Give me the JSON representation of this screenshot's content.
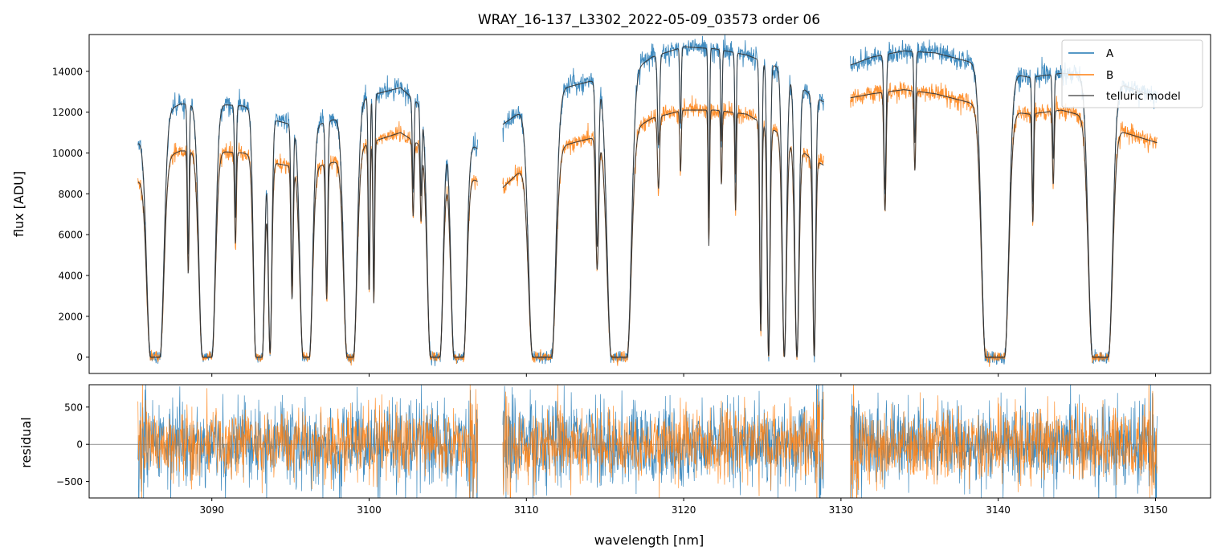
{
  "chart_data": [
    {
      "type": "line",
      "title": "WRAY_16-137_L3302_2022-05-09_03573  order 06",
      "xlabel": "",
      "ylabel": "flux [ADU]",
      "xlim": [
        3082.2,
        3153.5
      ],
      "ylim": [
        -800,
        15800
      ],
      "yticks": [
        0,
        2000,
        4000,
        6000,
        8000,
        10000,
        12000,
        14000
      ],
      "xticks": [
        3090,
        3100,
        3110,
        3120,
        3130,
        3140,
        3150
      ],
      "legend": {
        "placement": "top-right",
        "entries": [
          "A",
          "B",
          "telluric model"
        ]
      },
      "segments": [
        [
          3085.3,
          3106.9
        ],
        [
          3108.5,
          3128.9
        ],
        [
          3130.6,
          3150.1
        ]
      ],
      "continuum_A": [
        [
          3085.3,
          10500
        ],
        [
          3086.5,
          11800
        ],
        [
          3088.0,
          12400
        ],
        [
          3090.0,
          12400
        ],
        [
          3092.0,
          12300
        ],
        [
          3094.0,
          11600
        ],
        [
          3096.0,
          11200
        ],
        [
          3098.0,
          11700
        ],
        [
          3100.0,
          12800
        ],
        [
          3102.0,
          13200
        ],
        [
          3104.0,
          11800
        ],
        [
          3106.0,
          10700
        ],
        [
          3106.9,
          10200
        ],
        [
          3108.5,
          11400
        ],
        [
          3110.0,
          12200
        ],
        [
          3112.0,
          13100
        ],
        [
          3114.0,
          13500
        ],
        [
          3116.0,
          13600
        ],
        [
          3118.0,
          14700
        ],
        [
          3120.0,
          15200
        ],
        [
          3122.0,
          15100
        ],
        [
          3124.0,
          14800
        ],
        [
          3126.0,
          14200
        ],
        [
          3128.0,
          12900
        ],
        [
          3128.9,
          12500
        ],
        [
          3130.6,
          14300
        ],
        [
          3132.0,
          14700
        ],
        [
          3134.0,
          15000
        ],
        [
          3136.0,
          14900
        ],
        [
          3138.0,
          14500
        ],
        [
          3140.0,
          14000
        ],
        [
          3142.0,
          13700
        ],
        [
          3144.0,
          13900
        ],
        [
          3146.0,
          13800
        ],
        [
          3148.0,
          13300
        ],
        [
          3150.1,
          12700
        ]
      ],
      "continuum_B": [
        [
          3085.3,
          8600
        ],
        [
          3086.5,
          9600
        ],
        [
          3088.0,
          10100
        ],
        [
          3090.0,
          10100
        ],
        [
          3092.0,
          10000
        ],
        [
          3094.0,
          9500
        ],
        [
          3096.0,
          9200
        ],
        [
          3098.0,
          9600
        ],
        [
          3100.0,
          10500
        ],
        [
          3102.0,
          11000
        ],
        [
          3104.0,
          10000
        ],
        [
          3106.0,
          9000
        ],
        [
          3106.9,
          8600
        ],
        [
          3108.5,
          8300
        ],
        [
          3110.0,
          9400
        ],
        [
          3112.0,
          10300
        ],
        [
          3114.0,
          10700
        ],
        [
          3116.0,
          10800
        ],
        [
          3118.0,
          11700
        ],
        [
          3120.0,
          12100
        ],
        [
          3122.0,
          12100
        ],
        [
          3124.0,
          11900
        ],
        [
          3126.0,
          11000
        ],
        [
          3128.0,
          9800
        ],
        [
          3128.9,
          9400
        ],
        [
          3130.6,
          12700
        ],
        [
          3132.0,
          12900
        ],
        [
          3134.0,
          13100
        ],
        [
          3136.0,
          12900
        ],
        [
          3138.0,
          12500
        ],
        [
          3140.0,
          12100
        ],
        [
          3142.0,
          11900
        ],
        [
          3144.0,
          12100
        ],
        [
          3146.0,
          11700
        ],
        [
          3148.0,
          11000
        ],
        [
          3150.1,
          10500
        ]
      ],
      "absorption_lines": [
        {
          "center": 3086.4,
          "width": 0.55,
          "depth": 1.0,
          "flat": 0.3
        },
        {
          "center": 3088.5,
          "width": 0.12,
          "depth": 0.6
        },
        {
          "center": 3089.7,
          "width": 0.5,
          "depth": 1.0,
          "flat": 0.3
        },
        {
          "center": 3091.5,
          "width": 0.12,
          "depth": 0.45
        },
        {
          "center": 3093.0,
          "width": 0.35,
          "depth": 1.0,
          "flat": 0.2
        },
        {
          "center": 3093.7,
          "width": 0.25,
          "depth": 0.98
        },
        {
          "center": 3095.1,
          "width": 0.15,
          "depth": 0.7
        },
        {
          "center": 3096.0,
          "width": 0.45,
          "depth": 1.0,
          "flat": 0.2
        },
        {
          "center": 3097.3,
          "width": 0.15,
          "depth": 0.7
        },
        {
          "center": 3098.8,
          "width": 0.5,
          "depth": 1.0,
          "flat": 0.2
        },
        {
          "center": 3100.0,
          "width": 0.12,
          "depth": 0.7
        },
        {
          "center": 3100.3,
          "width": 0.12,
          "depth": 0.75
        },
        {
          "center": 3102.8,
          "width": 0.12,
          "depth": 0.35
        },
        {
          "center": 3103.3,
          "width": 0.12,
          "depth": 0.35
        },
        {
          "center": 3104.2,
          "width": 0.45,
          "depth": 1.0,
          "flat": 0.3
        },
        {
          "center": 3105.7,
          "width": 0.45,
          "depth": 1.0,
          "flat": 0.3
        },
        {
          "center": 3111.0,
          "width": 0.6,
          "depth": 1.0,
          "flat": 0.6
        },
        {
          "center": 3114.5,
          "width": 0.2,
          "depth": 0.6
        },
        {
          "center": 3115.9,
          "width": 0.6,
          "depth": 1.0,
          "flat": 0.5
        },
        {
          "center": 3118.4,
          "width": 0.15,
          "depth": 0.3
        },
        {
          "center": 3119.8,
          "width": 0.1,
          "depth": 0.25
        },
        {
          "center": 3121.6,
          "width": 0.1,
          "depth": 0.55
        },
        {
          "center": 3122.4,
          "width": 0.1,
          "depth": 0.3
        },
        {
          "center": 3123.3,
          "width": 0.1,
          "depth": 0.4
        },
        {
          "center": 3124.9,
          "width": 0.15,
          "depth": 0.9
        },
        {
          "center": 3125.4,
          "width": 0.2,
          "depth": 1.0
        },
        {
          "center": 3126.4,
          "width": 0.3,
          "depth": 1.0
        },
        {
          "center": 3127.2,
          "width": 0.3,
          "depth": 1.0
        },
        {
          "center": 3128.3,
          "width": 0.2,
          "depth": 1.0
        },
        {
          "center": 3132.8,
          "width": 0.15,
          "depth": 0.45
        },
        {
          "center": 3134.7,
          "width": 0.12,
          "depth": 0.3
        },
        {
          "center": 3139.8,
          "width": 0.6,
          "depth": 1.0,
          "flat": 0.6
        },
        {
          "center": 3142.2,
          "width": 0.12,
          "depth": 0.45
        },
        {
          "center": 3143.5,
          "width": 0.12,
          "depth": 0.3
        },
        {
          "center": 3146.5,
          "width": 0.6,
          "depth": 1.0,
          "flat": 0.5
        }
      ]
    },
    {
      "type": "line",
      "title": "",
      "xlabel": "wavelength [nm]",
      "ylabel": "residual",
      "xlim": [
        3082.2,
        3153.5
      ],
      "ylim": [
        -720,
        800
      ],
      "yticks": [
        -500,
        0,
        500
      ],
      "xticks": [
        3090,
        3100,
        3110,
        3120,
        3130,
        3140,
        3150
      ],
      "segments": [
        [
          3085.3,
          3106.9
        ],
        [
          3108.5,
          3128.9
        ],
        [
          3130.6,
          3150.1
        ]
      ],
      "baseline": 0,
      "noise_amplitude": {
        "A": 280,
        "B": 230
      }
    }
  ],
  "colors": {
    "A": "#1f77b4",
    "B": "#ff7f0e",
    "telluric model": "#333333",
    "zero_line": "#555555",
    "axes": "#000000"
  }
}
